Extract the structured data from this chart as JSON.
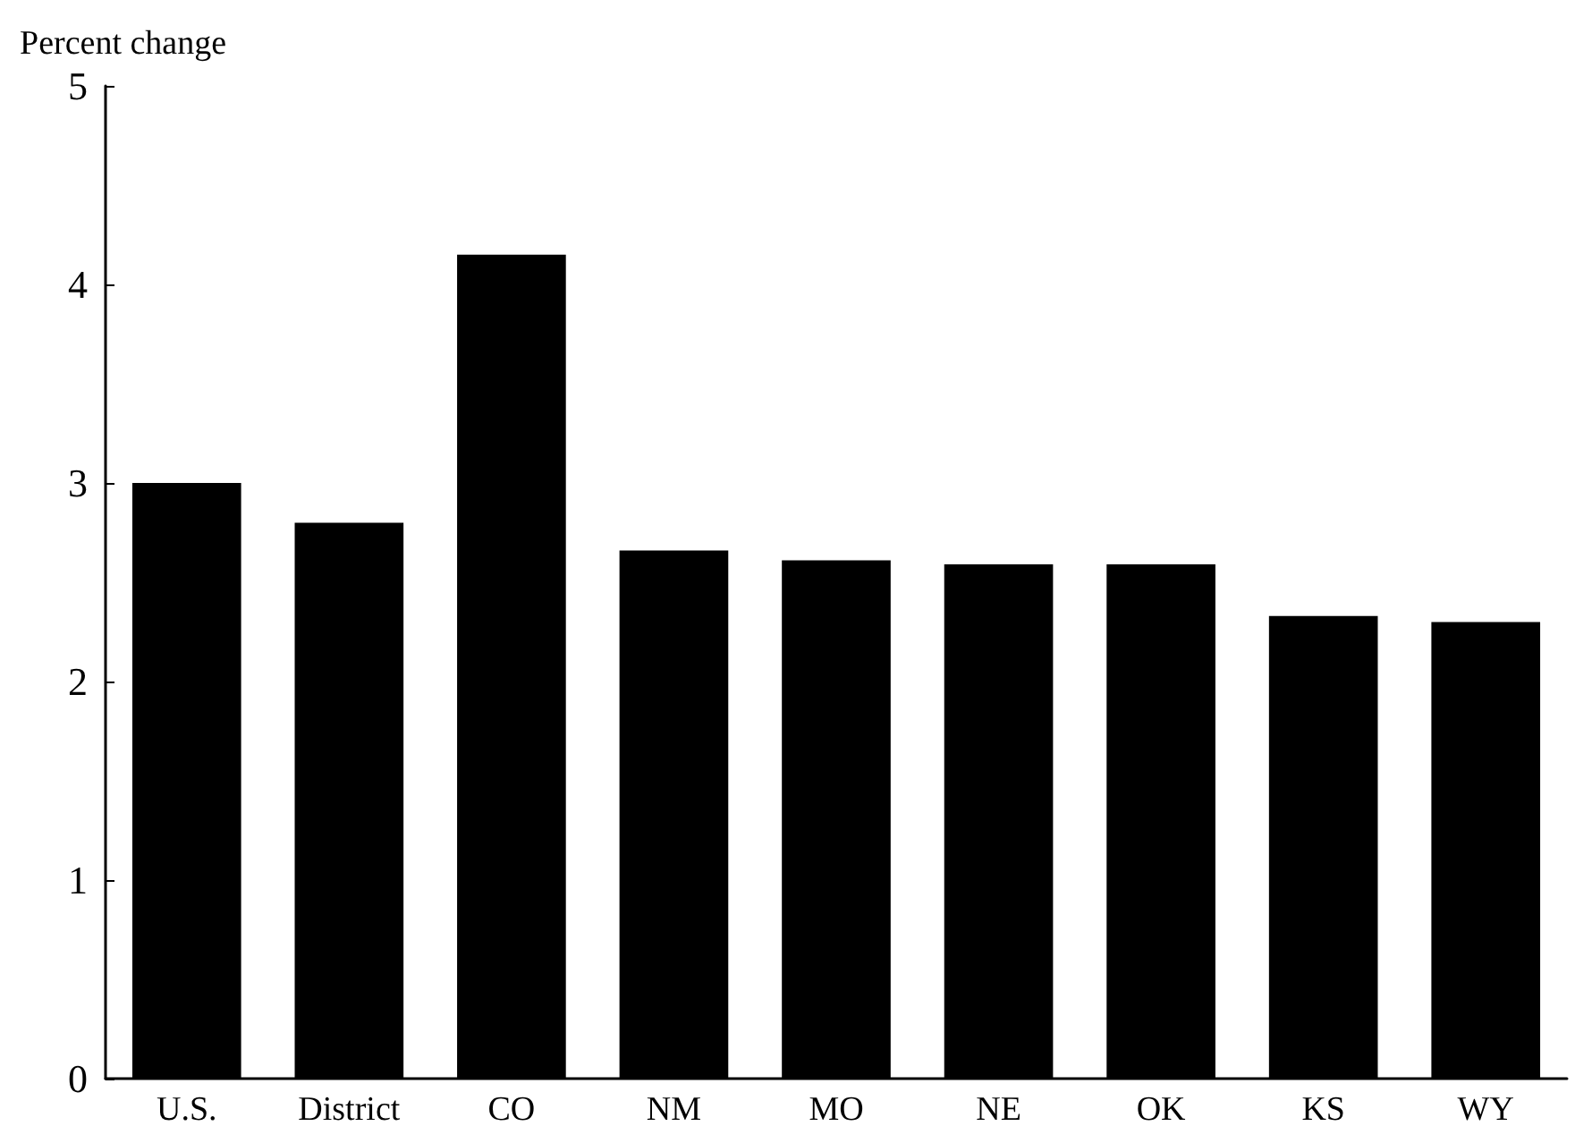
{
  "chart_data": {
    "type": "bar",
    "ylabel": "Percent change",
    "categories": [
      "U.S.",
      "District",
      "CO",
      "NM",
      "MO",
      "NE",
      "OK",
      "KS",
      "WY"
    ],
    "values": [
      3.0,
      2.8,
      4.15,
      2.66,
      2.61,
      2.59,
      2.59,
      2.33,
      2.3
    ],
    "color": "#000000",
    "ylim": [
      0,
      5
    ],
    "yticks": [
      0,
      1,
      2,
      3,
      4,
      5
    ],
    "grid": false
  }
}
